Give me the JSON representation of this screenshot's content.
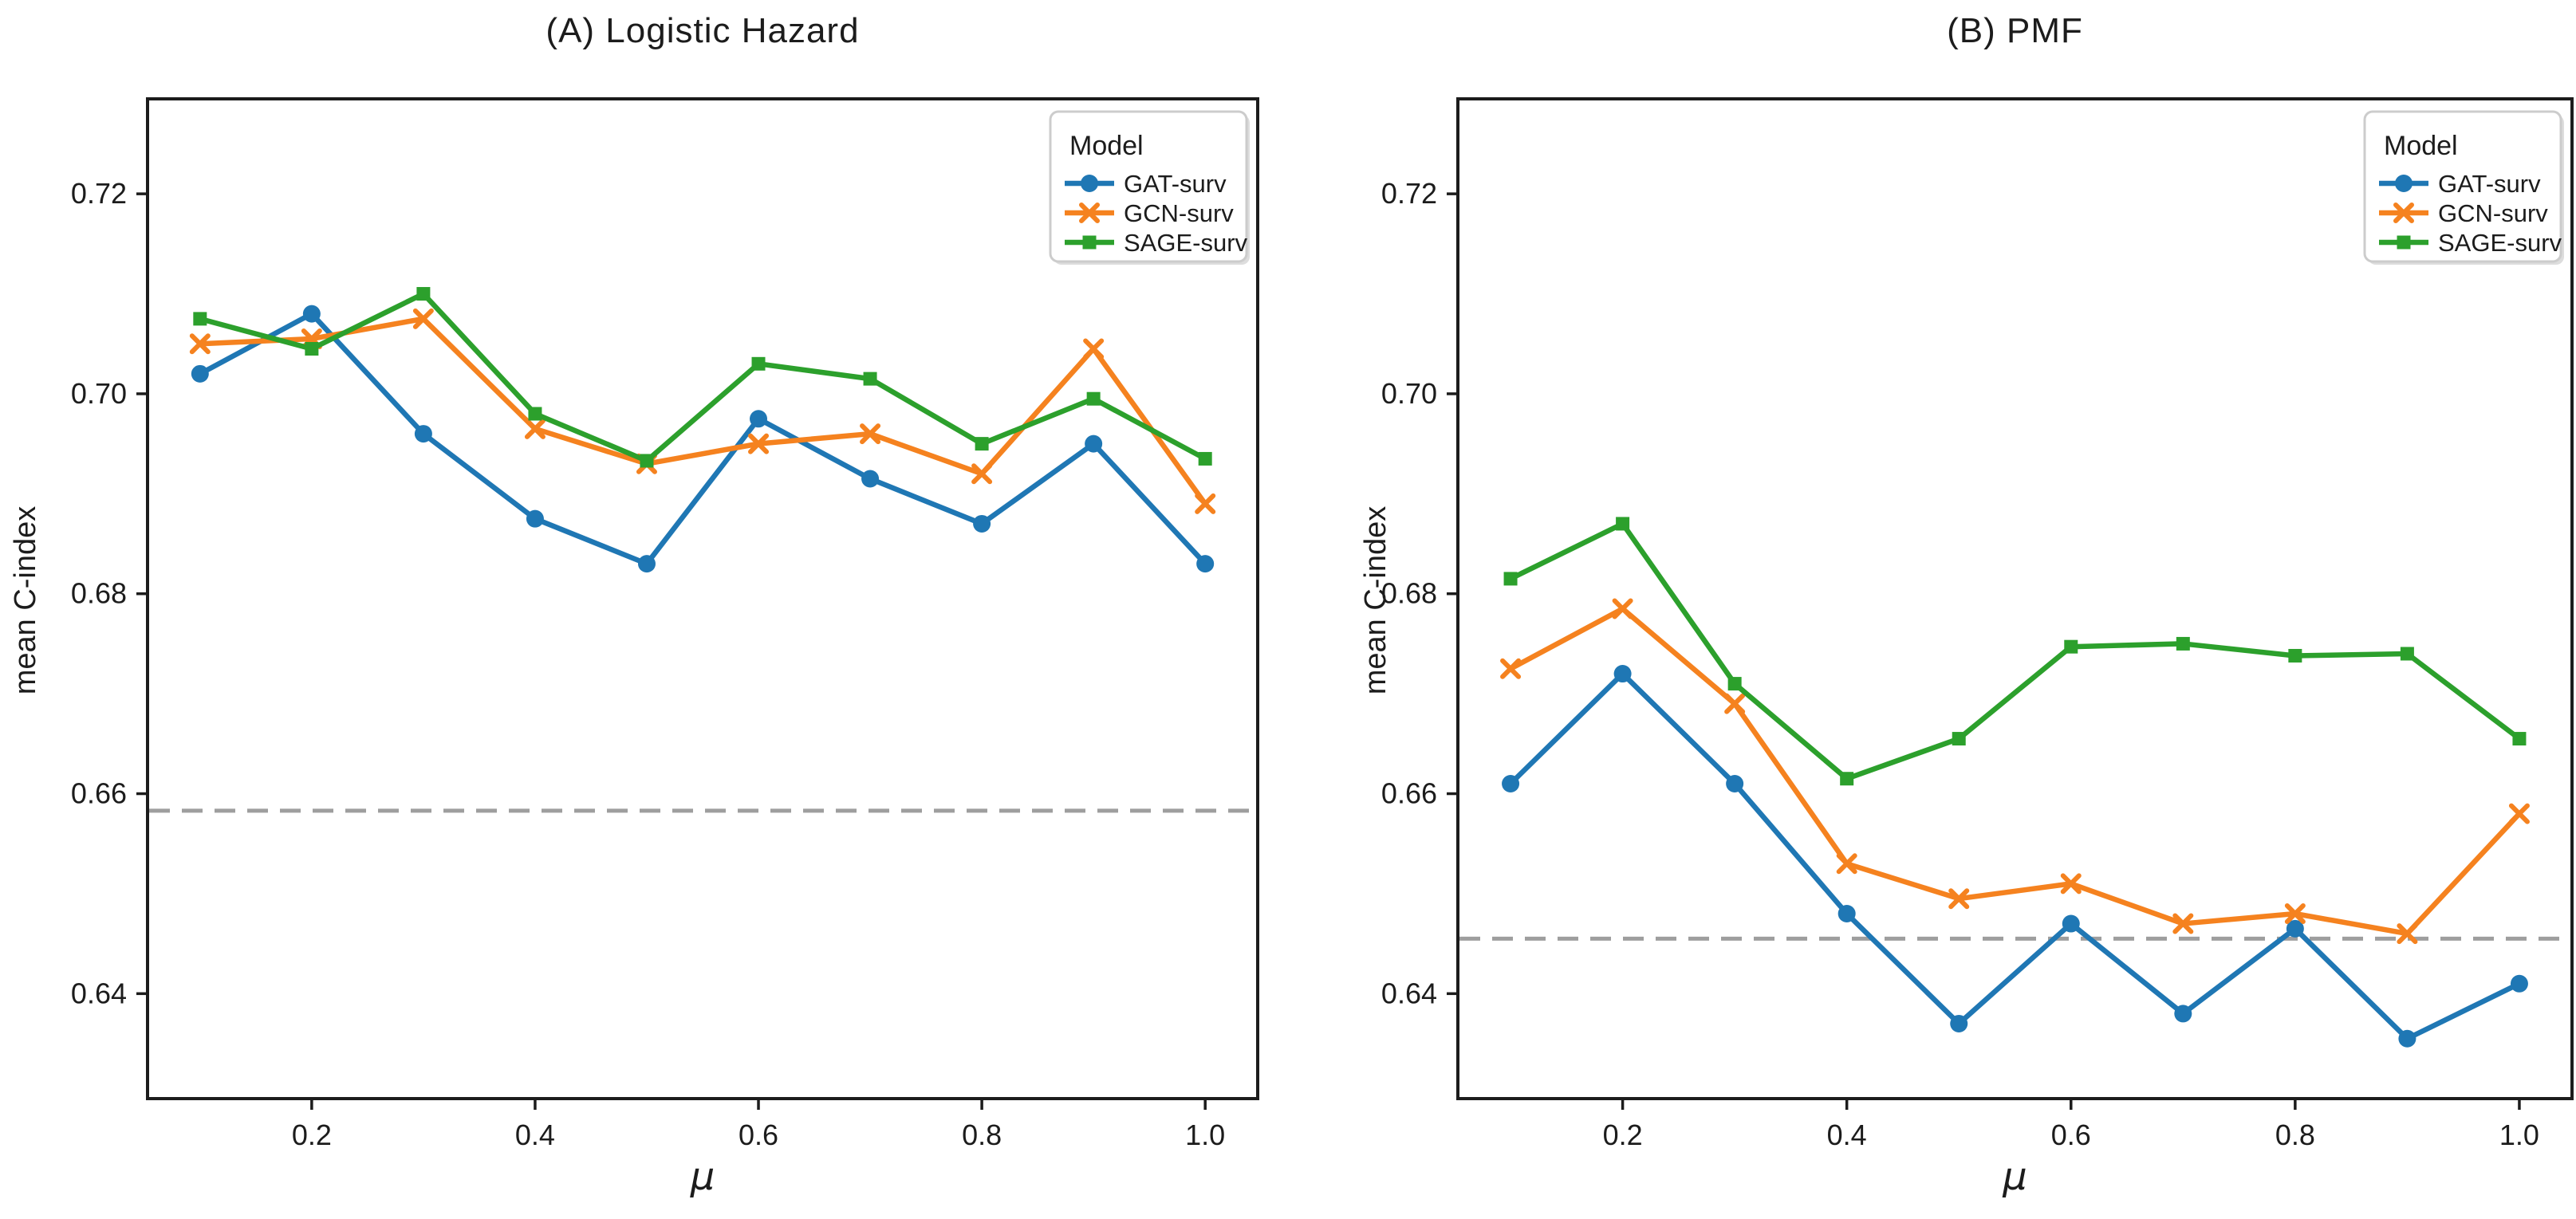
{
  "figure": {
    "ylabel": "mean C-index",
    "xlabel": "μ",
    "legend_title": "Model",
    "text_color": "#1c1c1c",
    "background": "#ffffff",
    "baseline_color": "#9e9e9e",
    "series_colors": {
      "gat": "#1f77b4",
      "gcn": "#f5821f",
      "sage": "#2ca02c"
    }
  },
  "chart_data": [
    {
      "type": "line",
      "title": "(A) Logistic Hazard",
      "xlabel": "μ",
      "ylabel": "mean C-index",
      "x": [
        0.1,
        0.2,
        0.3,
        0.4,
        0.5,
        0.6,
        0.7,
        0.8,
        0.9,
        1.0
      ],
      "xticks": [
        0.2,
        0.4,
        0.6,
        0.8,
        1.0
      ],
      "yticks": [
        0.64,
        0.66,
        0.68,
        0.7,
        0.72
      ],
      "xlim": [
        0.053,
        1.047
      ],
      "ylim": [
        0.6295,
        0.7295
      ],
      "grid": false,
      "legend_title": "Model",
      "legend_position": "upper right",
      "baseline_dashed_y": 0.6583,
      "series": [
        {
          "name": "GAT-surv",
          "color": "#1f77b4",
          "marker": "circle",
          "values": [
            0.702,
            0.708,
            0.696,
            0.6875,
            0.683,
            0.6975,
            0.6915,
            0.687,
            0.695,
            0.683
          ]
        },
        {
          "name": "GCN-surv",
          "color": "#f5821f",
          "marker": "x",
          "values": [
            0.705,
            0.7055,
            0.7075,
            0.6965,
            0.693,
            0.695,
            0.696,
            0.692,
            0.7045,
            0.689
          ]
        },
        {
          "name": "SAGE-surv",
          "color": "#2ca02c",
          "marker": "square",
          "values": [
            0.7075,
            0.7045,
            0.71,
            0.698,
            0.6933,
            0.703,
            0.7015,
            0.695,
            0.6995,
            0.6935
          ]
        }
      ]
    },
    {
      "type": "line",
      "title": "(B) PMF",
      "xlabel": "μ",
      "ylabel": "mean C-index",
      "x": [
        0.1,
        0.2,
        0.3,
        0.4,
        0.5,
        0.6,
        0.7,
        0.8,
        0.9,
        1.0
      ],
      "xticks": [
        0.2,
        0.4,
        0.6,
        0.8,
        1.0
      ],
      "yticks": [
        0.64,
        0.66,
        0.68,
        0.7,
        0.72
      ],
      "xlim": [
        0.053,
        1.047
      ],
      "ylim": [
        0.6295,
        0.7295
      ],
      "grid": false,
      "legend_title": "Model",
      "legend_position": "upper right",
      "baseline_dashed_y": 0.6455,
      "series": [
        {
          "name": "GAT-surv",
          "color": "#1f77b4",
          "marker": "circle",
          "values": [
            0.661,
            0.672,
            0.661,
            0.648,
            0.637,
            0.647,
            0.638,
            0.6465,
            0.6355,
            0.641
          ]
        },
        {
          "name": "GCN-surv",
          "color": "#f5821f",
          "marker": "x",
          "values": [
            0.6725,
            0.6785,
            0.669,
            0.653,
            0.6495,
            0.651,
            0.647,
            0.648,
            0.646,
            0.658
          ]
        },
        {
          "name": "SAGE-surv",
          "color": "#2ca02c",
          "marker": "square",
          "values": [
            0.6815,
            0.687,
            0.671,
            0.6615,
            0.6655,
            0.6747,
            0.675,
            0.6738,
            0.674,
            0.6655
          ]
        }
      ]
    }
  ]
}
